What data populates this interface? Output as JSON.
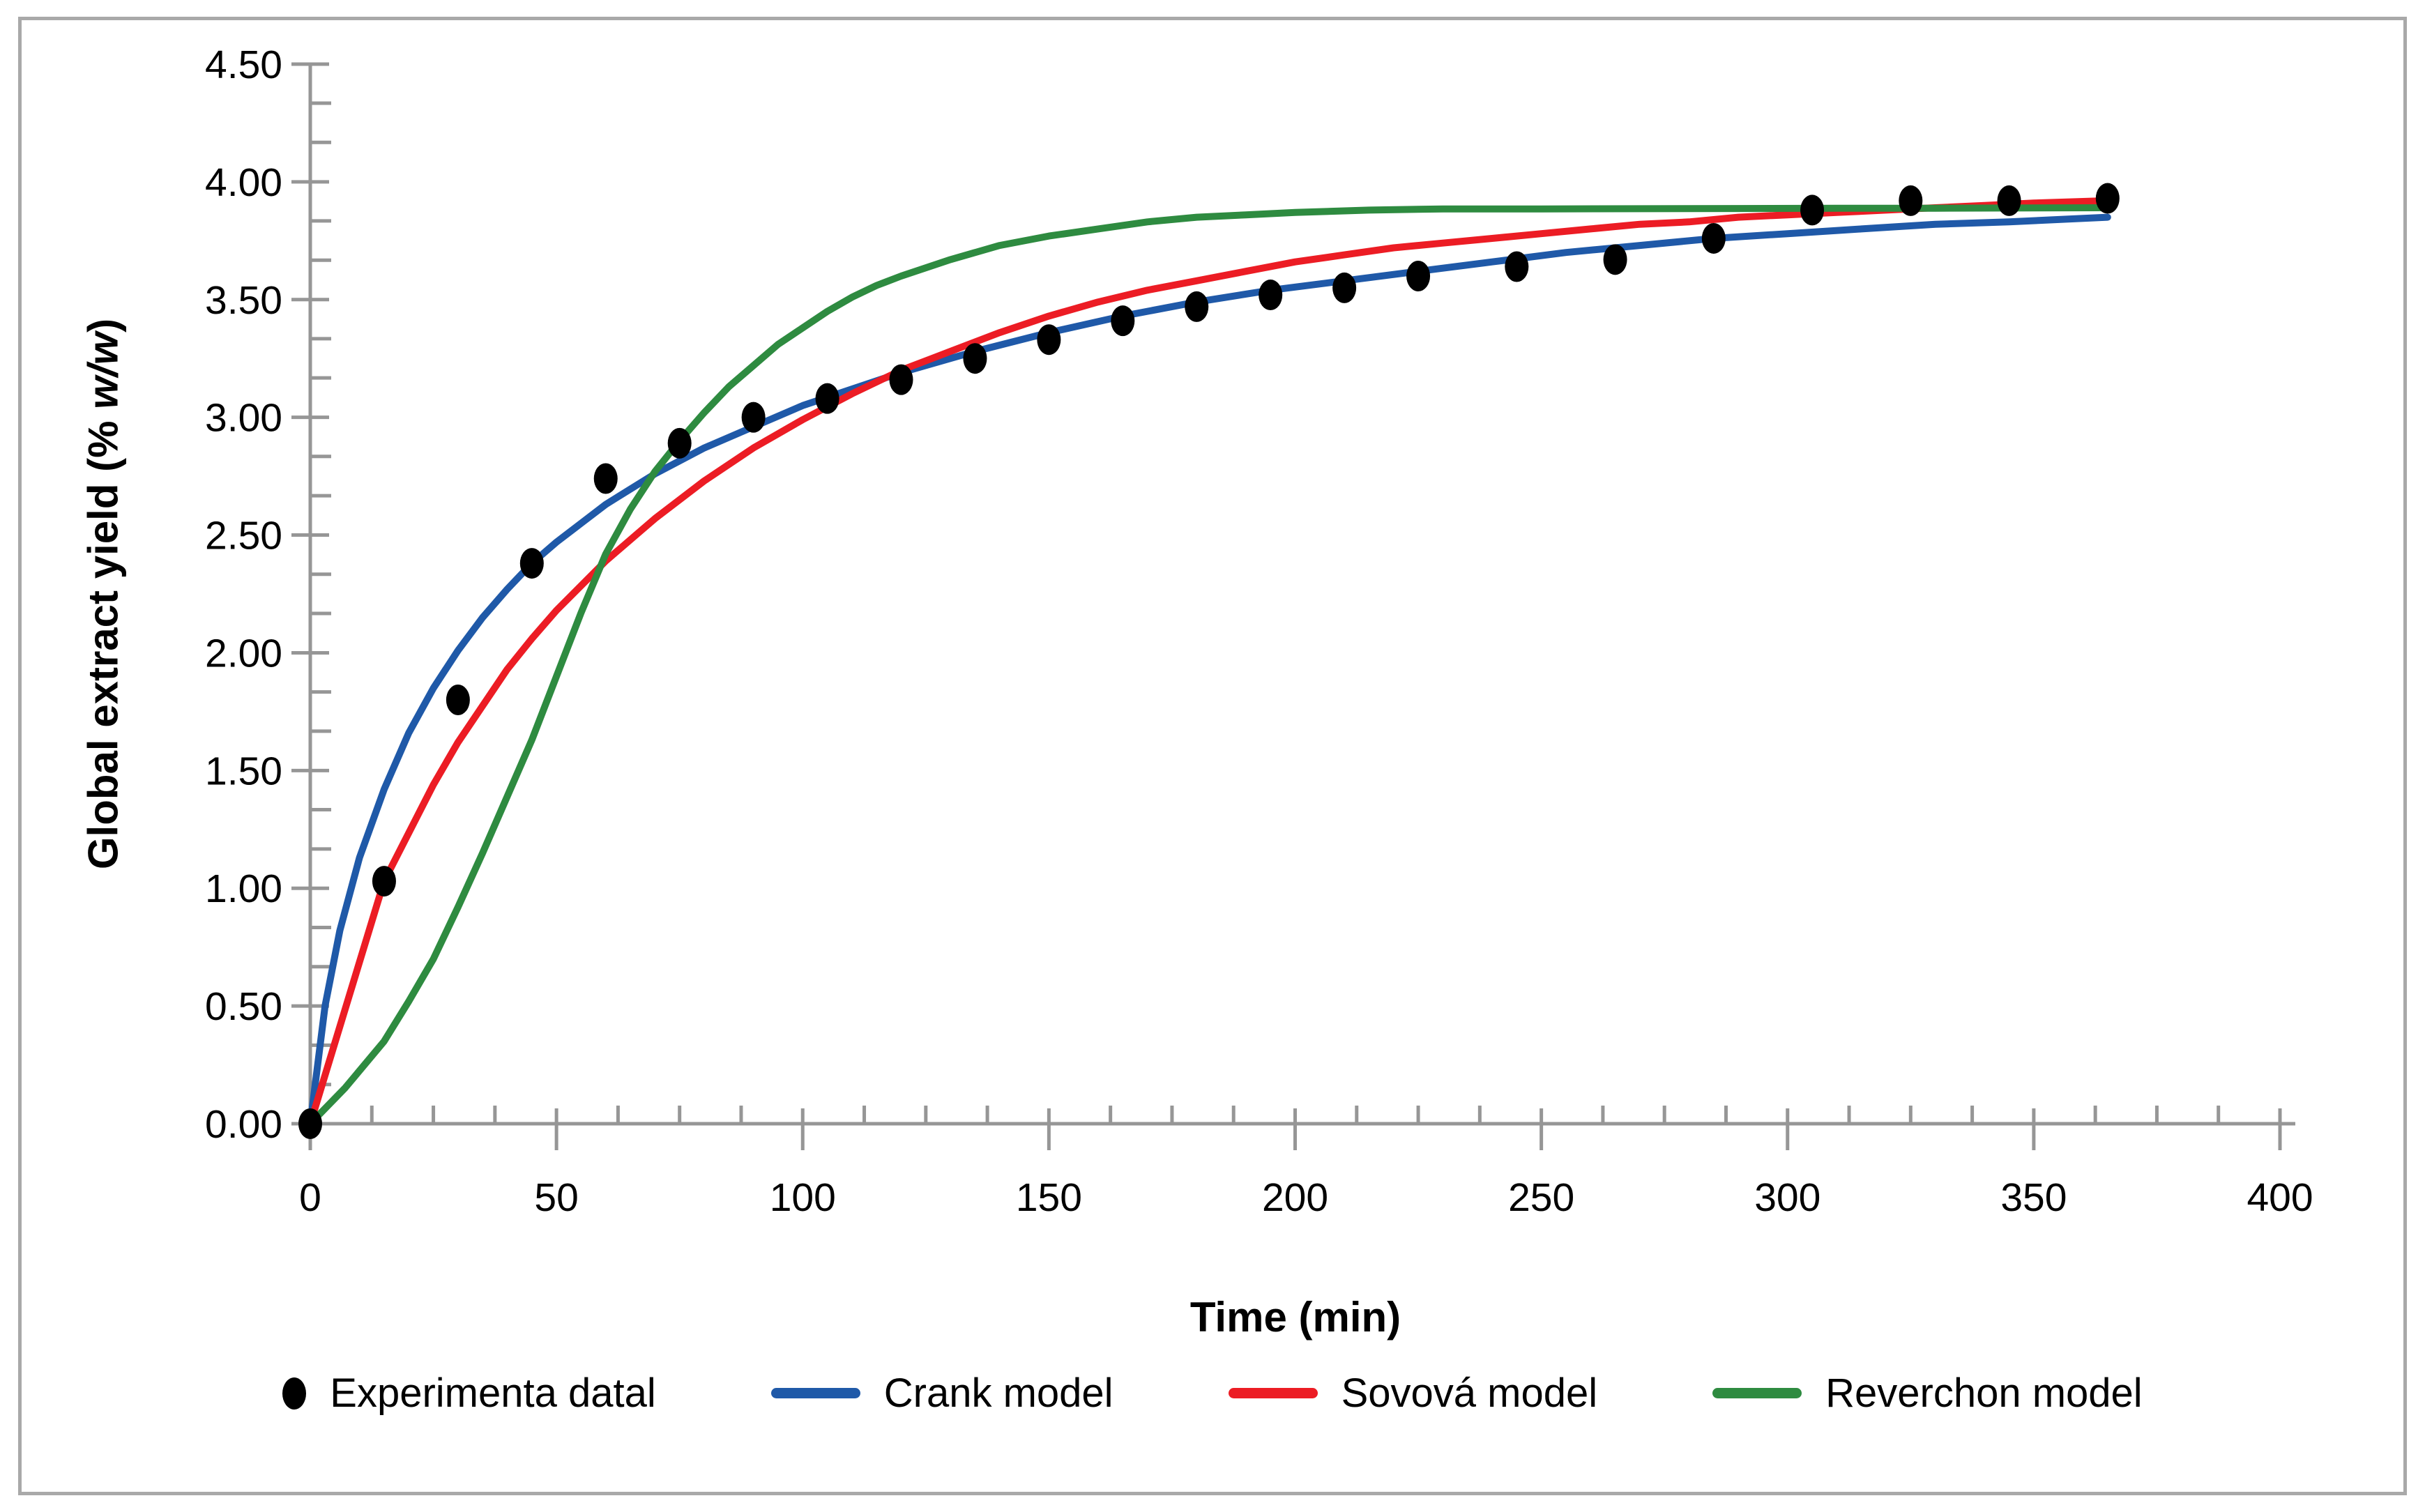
{
  "figure": {
    "border_color": "#a9a9a9",
    "background_color": "#ffffff",
    "axis_color": "#969696",
    "tick_label_color": "#000000"
  },
  "chart_data": {
    "type": "scatter",
    "title": "",
    "xlabel": "Time (min)",
    "ylabel_prefix": "Global extract yield (% ",
    "ylabel_italic": "w/w",
    "ylabel_suffix": ")",
    "xlim": [
      0,
      400
    ],
    "ylim": [
      0,
      4.5
    ],
    "grid": false,
    "legend_position": "bottom",
    "x_tick_values": [
      0,
      50,
      100,
      150,
      200,
      250,
      300,
      350,
      400
    ],
    "x_tick_labels": [
      "0",
      "50",
      "100",
      "150",
      "200",
      "250",
      "300",
      "350",
      "400"
    ],
    "x_minor_step": 12.5,
    "y_tick_values": [
      0,
      0.5,
      1,
      1.5,
      2,
      2.5,
      3,
      3.5,
      4,
      4.5
    ],
    "y_tick_labels": [
      "0.00",
      "0.50",
      "1.00",
      "1.50",
      "2.00",
      "2.50",
      "3.00",
      "3.50",
      "4.00",
      "4.50"
    ],
    "y_minor_step": 0.1667,
    "experimental": {
      "name": "Experimenta datal",
      "marker": "filled-black-ellipse",
      "color": "#000000",
      "points": [
        [
          0,
          0.0
        ],
        [
          15,
          1.03
        ],
        [
          30,
          1.8
        ],
        [
          45,
          2.38
        ],
        [
          60,
          2.74
        ],
        [
          75,
          2.89
        ],
        [
          90,
          3.0
        ],
        [
          105,
          3.08
        ],
        [
          120,
          3.16
        ],
        [
          135,
          3.25
        ],
        [
          150,
          3.33
        ],
        [
          165,
          3.41
        ],
        [
          180,
          3.47
        ],
        [
          195,
          3.52
        ],
        [
          210,
          3.55
        ],
        [
          225,
          3.6
        ],
        [
          245,
          3.64
        ],
        [
          265,
          3.67
        ],
        [
          285,
          3.76
        ],
        [
          305,
          3.88
        ],
        [
          325,
          3.92
        ],
        [
          345,
          3.92
        ],
        [
          365,
          3.93
        ]
      ]
    },
    "series": [
      {
        "name": "Crank model",
        "color": "#1f59a8",
        "points": [
          [
            0,
            0
          ],
          [
            3,
            0.5
          ],
          [
            6,
            0.82
          ],
          [
            10,
            1.13
          ],
          [
            15,
            1.42
          ],
          [
            20,
            1.66
          ],
          [
            25,
            1.85
          ],
          [
            30,
            2.01
          ],
          [
            35,
            2.15
          ],
          [
            40,
            2.27
          ],
          [
            45,
            2.38
          ],
          [
            50,
            2.47
          ],
          [
            55,
            2.55
          ],
          [
            60,
            2.63
          ],
          [
            70,
            2.76
          ],
          [
            80,
            2.87
          ],
          [
            90,
            2.96
          ],
          [
            100,
            3.05
          ],
          [
            110,
            3.12
          ],
          [
            120,
            3.19
          ],
          [
            135,
            3.28
          ],
          [
            150,
            3.36
          ],
          [
            165,
            3.43
          ],
          [
            180,
            3.49
          ],
          [
            195,
            3.54
          ],
          [
            210,
            3.58
          ],
          [
            225,
            3.62
          ],
          [
            240,
            3.66
          ],
          [
            255,
            3.7
          ],
          [
            270,
            3.73
          ],
          [
            285,
            3.76
          ],
          [
            300,
            3.78
          ],
          [
            315,
            3.8
          ],
          [
            330,
            3.82
          ],
          [
            345,
            3.83
          ],
          [
            365,
            3.85
          ]
        ]
      },
      {
        "name": "Sovová model",
        "color": "#ec1c24",
        "points": [
          [
            0,
            0
          ],
          [
            15,
            1.03
          ],
          [
            25,
            1.44
          ],
          [
            30,
            1.62
          ],
          [
            40,
            1.93
          ],
          [
            45,
            2.06
          ],
          [
            50,
            2.18
          ],
          [
            60,
            2.39
          ],
          [
            70,
            2.57
          ],
          [
            80,
            2.73
          ],
          [
            90,
            2.87
          ],
          [
            100,
            2.99
          ],
          [
            110,
            3.1
          ],
          [
            120,
            3.2
          ],
          [
            130,
            3.28
          ],
          [
            140,
            3.36
          ],
          [
            150,
            3.43
          ],
          [
            160,
            3.49
          ],
          [
            170,
            3.54
          ],
          [
            180,
            3.58
          ],
          [
            190,
            3.62
          ],
          [
            200,
            3.66
          ],
          [
            210,
            3.69
          ],
          [
            220,
            3.72
          ],
          [
            230,
            3.74
          ],
          [
            240,
            3.76
          ],
          [
            250,
            3.78
          ],
          [
            260,
            3.8
          ],
          [
            270,
            3.82
          ],
          [
            280,
            3.83
          ],
          [
            290,
            3.85
          ],
          [
            300,
            3.86
          ],
          [
            310,
            3.87
          ],
          [
            320,
            3.88
          ],
          [
            330,
            3.89
          ],
          [
            340,
            3.9
          ],
          [
            350,
            3.91
          ],
          [
            365,
            3.92
          ]
        ]
      },
      {
        "name": "Reverchon model",
        "color": "#2e8b40",
        "points": [
          [
            0,
            0
          ],
          [
            7,
            0.15
          ],
          [
            15,
            0.35
          ],
          [
            20,
            0.52
          ],
          [
            25,
            0.7
          ],
          [
            30,
            0.92
          ],
          [
            35,
            1.15
          ],
          [
            40,
            1.39
          ],
          [
            45,
            1.63
          ],
          [
            50,
            1.9
          ],
          [
            55,
            2.17
          ],
          [
            60,
            2.42
          ],
          [
            65,
            2.61
          ],
          [
            70,
            2.77
          ],
          [
            75,
            2.9
          ],
          [
            80,
            3.02
          ],
          [
            85,
            3.13
          ],
          [
            90,
            3.22
          ],
          [
            95,
            3.31
          ],
          [
            100,
            3.38
          ],
          [
            105,
            3.45
          ],
          [
            110,
            3.51
          ],
          [
            115,
            3.56
          ],
          [
            120,
            3.6
          ],
          [
            130,
            3.67
          ],
          [
            140,
            3.73
          ],
          [
            150,
            3.77
          ],
          [
            160,
            3.8
          ],
          [
            170,
            3.83
          ],
          [
            180,
            3.85
          ],
          [
            190,
            3.86
          ],
          [
            200,
            3.87
          ],
          [
            215,
            3.88
          ],
          [
            230,
            3.885
          ],
          [
            250,
            3.885
          ],
          [
            270,
            3.886
          ],
          [
            290,
            3.887
          ],
          [
            310,
            3.888
          ],
          [
            330,
            3.888
          ],
          [
            365,
            3.89
          ]
        ]
      }
    ]
  }
}
